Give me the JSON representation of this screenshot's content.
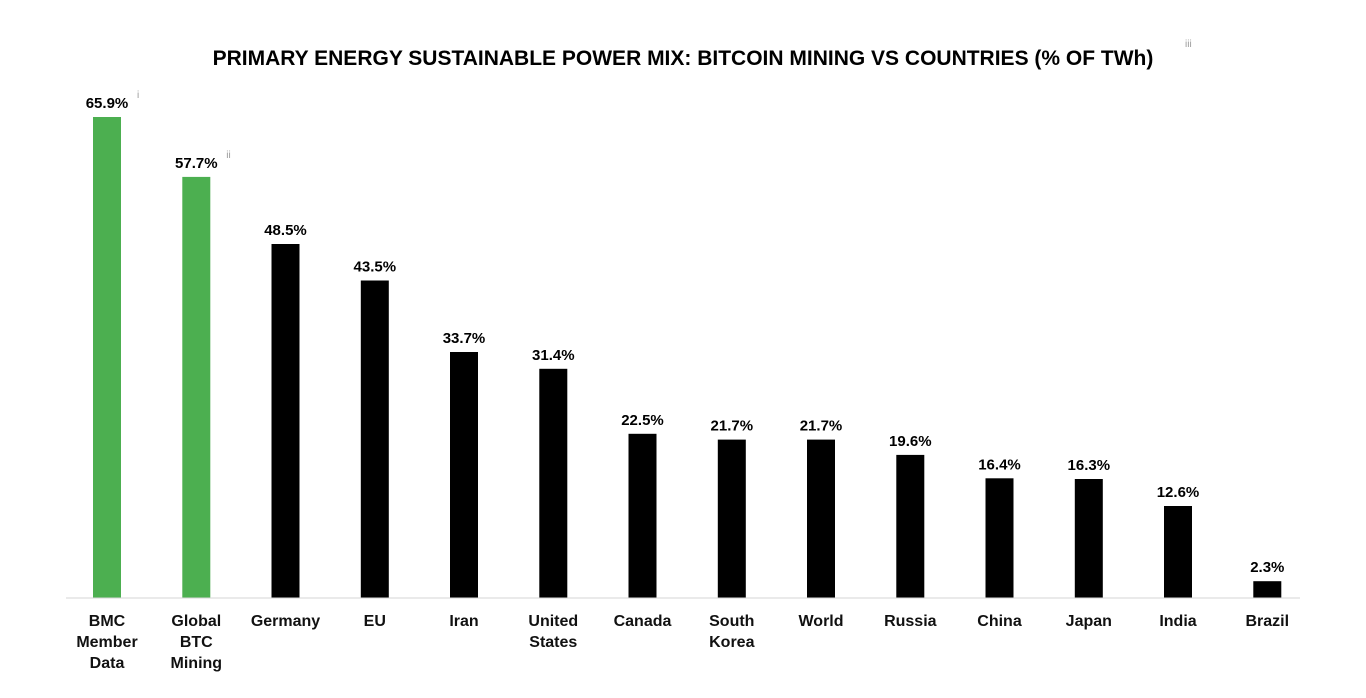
{
  "chart_data": {
    "type": "bar",
    "title": "PRIMARY ENERGY SUSTAINABLE POWER MIX: BITCOIN MINING VS COUNTRIES (% OF TWh)",
    "title_note": "iii",
    "xlabel": "",
    "ylabel": "",
    "ylim": [
      0,
      66
    ],
    "grid": false,
    "legend": "none",
    "categories": [
      [
        "BMC",
        "Member",
        "Data"
      ],
      [
        "Global",
        "BTC",
        "Mining"
      ],
      [
        "Germany"
      ],
      [
        "EU"
      ],
      [
        "Iran"
      ],
      [
        "United",
        "States"
      ],
      [
        "Canada"
      ],
      [
        "South",
        "Korea"
      ],
      [
        "World"
      ],
      [
        "Russia"
      ],
      [
        "China"
      ],
      [
        "Japan"
      ],
      [
        "India"
      ],
      [
        "Brazil"
      ]
    ],
    "values": [
      65.9,
      57.7,
      48.5,
      43.5,
      33.7,
      31.4,
      22.5,
      21.7,
      21.7,
      19.6,
      16.4,
      16.3,
      12.6,
      2.3
    ],
    "value_labels": [
      "65.9%",
      "57.7%",
      "48.5%",
      "43.5%",
      "33.7%",
      "31.4%",
      "22.5%",
      "21.7%",
      "21.7%",
      "19.6%",
      "16.4%",
      "16.3%",
      "12.6%",
      "2.3%"
    ],
    "value_notes": [
      "i",
      "ii",
      "",
      "",
      "",
      "",
      "",
      "",
      "",
      "",
      "",
      "",
      "",
      ""
    ],
    "bar_colors": [
      "#4caf50",
      "#4caf50",
      "#000000",
      "#000000",
      "#000000",
      "#000000",
      "#000000",
      "#000000",
      "#000000",
      "#000000",
      "#000000",
      "#000000",
      "#000000",
      "#000000"
    ],
    "baseline_color": "#d6d6d6"
  }
}
